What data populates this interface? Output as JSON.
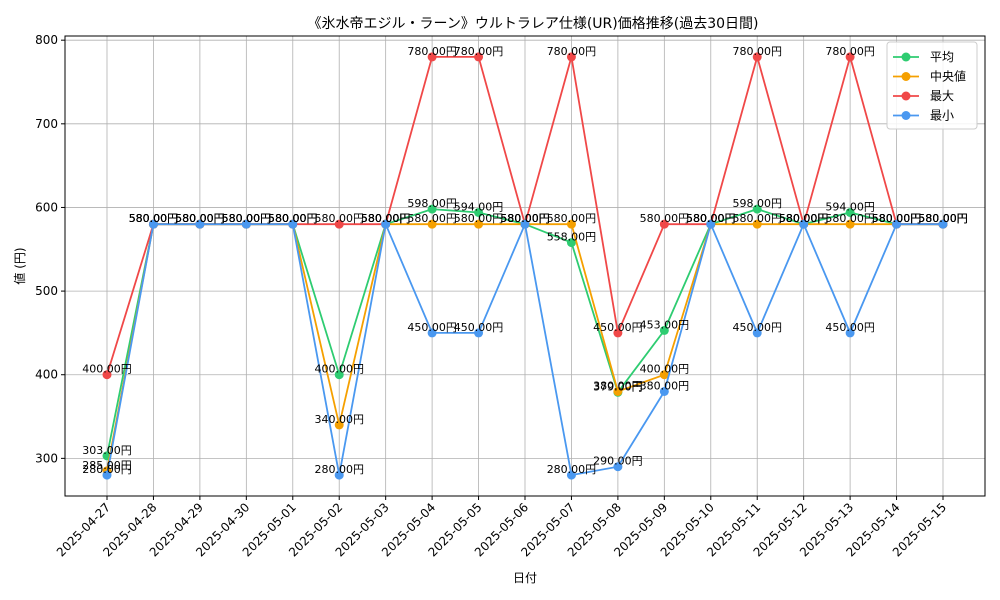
{
  "chart_data": {
    "type": "line",
    "title": "《氷水帝エジル・ラーン》ウルトラレア仕様(UR)価格推移(過去30日間)",
    "xlabel": "日付",
    "ylabel": "値 (円)",
    "categories": [
      "2025-04-27",
      "2025-04-28",
      "2025-04-29",
      "2025-04-30",
      "2025-05-01",
      "2025-05-02",
      "2025-05-03",
      "2025-05-04",
      "2025-05-05",
      "2025-05-06",
      "2025-05-07",
      "2025-05-08",
      "2025-05-09",
      "2025-05-10",
      "2025-05-11",
      "2025-05-12",
      "2025-05-13",
      "2025-05-14",
      "2025-05-15"
    ],
    "y_ticks": [
      300,
      400,
      500,
      600,
      700,
      800
    ],
    "ylim": [
      255,
      805
    ],
    "grid": true,
    "legend_position": "top-right",
    "label_suffix": "円",
    "series": [
      {
        "name": "平均",
        "color": "#2ecc71",
        "values": [
          303,
          580,
          580,
          580,
          580,
          400,
          580,
          598,
          594,
          580,
          558,
          379,
          453,
          580,
          598,
          580,
          594,
          580,
          580
        ]
      },
      {
        "name": "中央値",
        "color": "#f5a000",
        "values": [
          285,
          580,
          580,
          580,
          580,
          340,
          580,
          580,
          580,
          580,
          580,
          380,
          400,
          580,
          580,
          580,
          580,
          580,
          580
        ]
      },
      {
        "name": "最大",
        "color": "#f04848",
        "values": [
          400,
          580,
          580,
          580,
          580,
          580,
          580,
          780,
          780,
          580,
          780,
          450,
          580,
          580,
          780,
          580,
          780,
          580,
          580
        ]
      },
      {
        "name": "最小",
        "color": "#4a98f0",
        "values": [
          280,
          580,
          580,
          580,
          580,
          280,
          580,
          450,
          450,
          580,
          280,
          290,
          380,
          580,
          450,
          580,
          450,
          580,
          580
        ]
      }
    ]
  }
}
